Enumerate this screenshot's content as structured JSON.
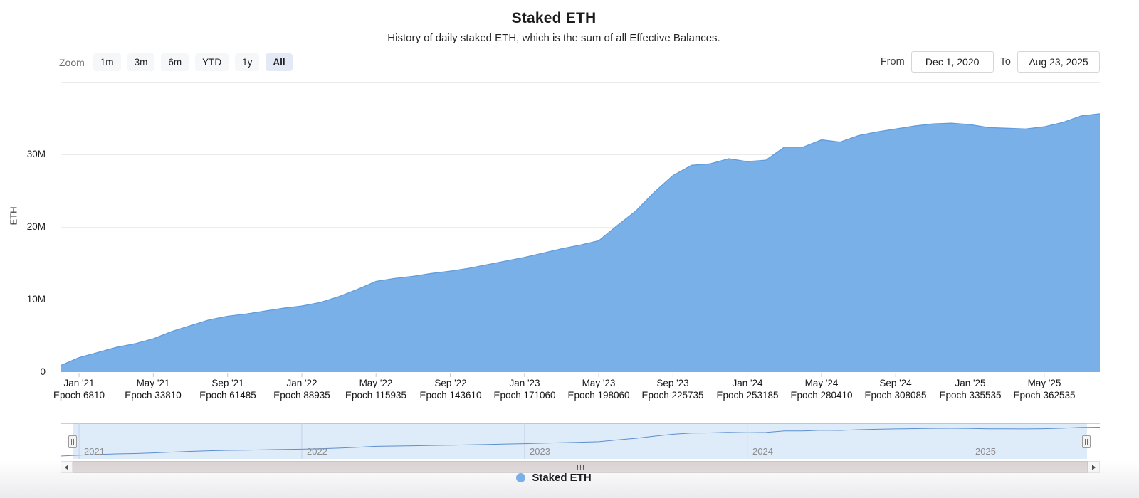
{
  "toolbar": {
    "zoom_label": "Zoom",
    "buttons": [
      {
        "label": "1m",
        "selected": false
      },
      {
        "label": "3m",
        "selected": false
      },
      {
        "label": "6m",
        "selected": false
      },
      {
        "label": "YTD",
        "selected": false
      },
      {
        "label": "1y",
        "selected": false
      },
      {
        "label": "All",
        "selected": true
      }
    ]
  },
  "range": {
    "from_label": "From",
    "from_value": "Dec 1, 2020",
    "to_label": "To",
    "to_value": "Aug 23, 2025"
  },
  "chart_data": {
    "type": "area",
    "title": "Staked ETH",
    "subtitle": "History of daily staked ETH, which is the sum of all Effective Balances.",
    "ylabel": "ETH",
    "unit": "ETH (millions)",
    "ylim_millions": [
      0,
      40
    ],
    "xlim_dates": [
      "2020-12-01",
      "2025-08-23"
    ],
    "grid": "horizontal",
    "yticks": [
      {
        "value_millions": 0,
        "label": "0"
      },
      {
        "value_millions": 10,
        "label": "10M"
      },
      {
        "value_millions": 20,
        "label": "20M"
      },
      {
        "value_millions": 30,
        "label": "30M"
      }
    ],
    "gridline_values_millions": [
      10,
      20,
      30,
      40
    ],
    "series": [
      {
        "name": "Staked ETH",
        "color": "#7AB0E8",
        "line_color": "#619CDC",
        "months": [
          "Dec '20",
          "Jan '21",
          "Feb '21",
          "Mar '21",
          "Apr '21",
          "May '21",
          "Jun '21",
          "Jul '21",
          "Aug '21",
          "Sep '21",
          "Oct '21",
          "Nov '21",
          "Dec '21",
          "Jan '22",
          "Feb '22",
          "Mar '22",
          "Apr '22",
          "May '22",
          "Jun '22",
          "Jul '22",
          "Aug '22",
          "Sep '22",
          "Oct '22",
          "Nov '22",
          "Dec '22",
          "Jan '23",
          "Feb '23",
          "Mar '23",
          "Apr '23",
          "May '23",
          "Jun '23",
          "Jul '23",
          "Aug '23",
          "Sep '23",
          "Oct '23",
          "Nov '23",
          "Dec '23",
          "Jan '24",
          "Feb '24",
          "Mar '24",
          "Apr '24",
          "May '24",
          "Jun '24",
          "Jul '24",
          "Aug '24",
          "Sep '24",
          "Oct '24",
          "Nov '24",
          "Dec '24",
          "Jan '25",
          "Feb '25",
          "Mar '25",
          "Apr '25",
          "May '25",
          "Jun '25",
          "Jul '25",
          "Aug '25"
        ],
        "values_millions": [
          0.9,
          2.0,
          2.7,
          3.4,
          3.9,
          4.6,
          5.6,
          6.4,
          7.2,
          7.7,
          8.0,
          8.4,
          8.8,
          9.1,
          9.6,
          10.4,
          11.4,
          12.5,
          12.9,
          13.2,
          13.6,
          13.9,
          14.3,
          14.8,
          15.3,
          15.8,
          16.4,
          17.0,
          17.5,
          18.1,
          20.2,
          22.2,
          24.8,
          27.1,
          28.5,
          28.7,
          29.4,
          29.0,
          29.2,
          31.0,
          31.0,
          32.0,
          31.7,
          32.6,
          33.1,
          33.5,
          33.9,
          34.2,
          34.3,
          34.1,
          33.7,
          33.6,
          33.5,
          33.8,
          34.4,
          35.3,
          35.6
        ]
      }
    ],
    "xticks": [
      {
        "month_index": 1,
        "label": "Jan '21",
        "epoch_label": "Epoch 6810"
      },
      {
        "month_index": 5,
        "label": "May '21",
        "epoch_label": "Epoch 33810"
      },
      {
        "month_index": 9,
        "label": "Sep '21",
        "epoch_label": "Epoch 61485"
      },
      {
        "month_index": 13,
        "label": "Jan '22",
        "epoch_label": "Epoch 88935"
      },
      {
        "month_index": 17,
        "label": "May '22",
        "epoch_label": "Epoch 115935"
      },
      {
        "month_index": 21,
        "label": "Sep '22",
        "epoch_label": "Epoch 143610"
      },
      {
        "month_index": 25,
        "label": "Jan '23",
        "epoch_label": "Epoch 171060"
      },
      {
        "month_index": 29,
        "label": "May '23",
        "epoch_label": "Epoch 198060"
      },
      {
        "month_index": 33,
        "label": "Sep '23",
        "epoch_label": "Epoch 225735"
      },
      {
        "month_index": 37,
        "label": "Jan '24",
        "epoch_label": "Epoch 253185"
      },
      {
        "month_index": 41,
        "label": "May '24",
        "epoch_label": "Epoch 280410"
      },
      {
        "month_index": 45,
        "label": "Sep '24",
        "epoch_label": "Epoch 308085"
      },
      {
        "month_index": 49,
        "label": "Jan '25",
        "epoch_label": "Epoch 335535"
      },
      {
        "month_index": 53,
        "label": "May '25",
        "epoch_label": "Epoch 362535"
      }
    ],
    "navigator": {
      "mask_color": "rgba(122,176,232,0.25)",
      "line_color": "#5D8FD0",
      "years": [
        {
          "label": "2021",
          "month_index": 1
        },
        {
          "label": "2022",
          "month_index": 13
        },
        {
          "label": "2023",
          "month_index": 25
        },
        {
          "label": "2024",
          "month_index": 37
        },
        {
          "label": "2025",
          "month_index": 49
        }
      ]
    },
    "legend": {
      "position": "bottom",
      "items": [
        {
          "label": "Staked ETH",
          "color": "#7AB0E8"
        }
      ]
    },
    "colors": {
      "gridline": "#ececec",
      "axis_tick": "#cccccc",
      "selected_button_bg": "#e4e9f6",
      "scrollbar_track": "#d9d2d2"
    }
  }
}
